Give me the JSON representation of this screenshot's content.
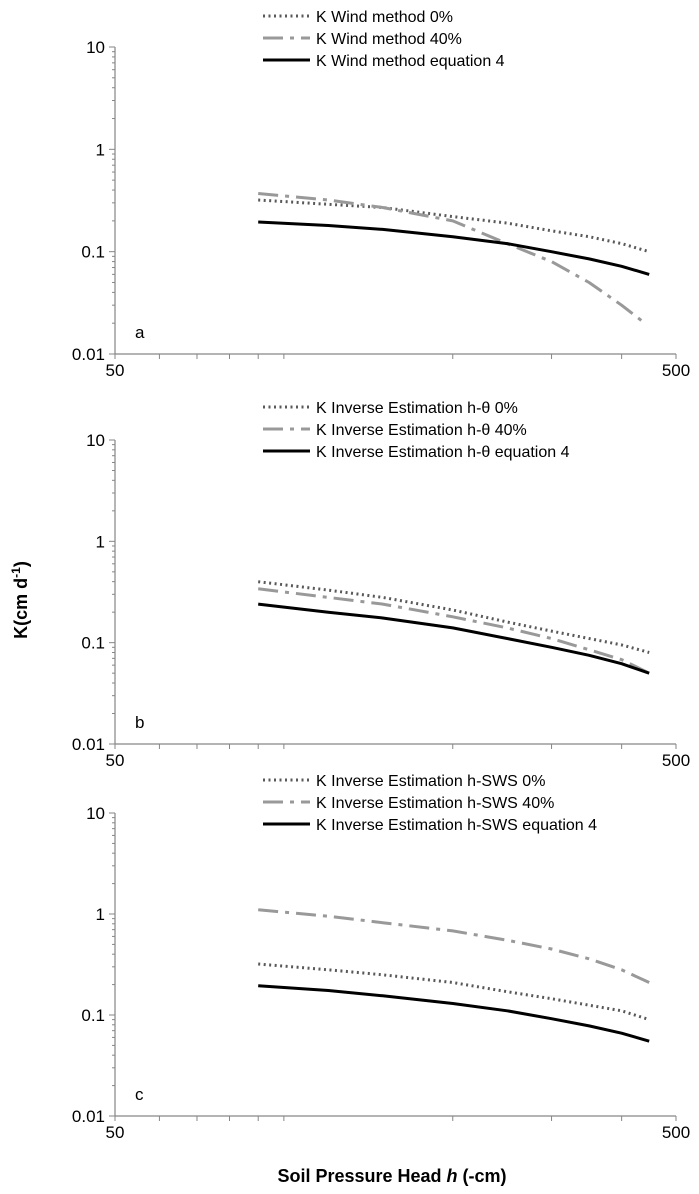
{
  "figure": {
    "ylabel": "K(cm d-1)",
    "ylabel_main": "K(cm d",
    "ylabel_sup": "-1",
    "ylabel_close": ")",
    "xlabel_pre": "Soil Pressure Head ",
    "xlabel_italic": "h",
    "xlabel_post": " (-cm)"
  },
  "chart_data": [
    {
      "type": "line",
      "panel_label": "a",
      "x_scale": "log",
      "y_scale": "log",
      "xlim": [
        50,
        500
      ],
      "ylim": [
        0.01,
        10
      ],
      "x_tick_labels": [
        "50",
        "500"
      ],
      "y_tick_labels": [
        "10",
        "1",
        "0.1",
        "0.01"
      ],
      "grid": false,
      "legend_position": "top-right",
      "series": [
        {
          "name": "K Wind method 0%",
          "style": "dotted",
          "color": "#595959",
          "x": [
            90,
            120,
            150,
            200,
            250,
            300,
            350,
            400,
            448
          ],
          "y": [
            0.32,
            0.29,
            0.27,
            0.22,
            0.19,
            0.16,
            0.14,
            0.12,
            0.1
          ]
        },
        {
          "name": "K Wind method 40%",
          "style": "dash-dot",
          "color": "#999999",
          "x": [
            90,
            120,
            150,
            200,
            250,
            300,
            350,
            400,
            440
          ],
          "y": [
            0.37,
            0.32,
            0.27,
            0.2,
            0.12,
            0.08,
            0.05,
            0.03,
            0.02
          ]
        },
        {
          "name": "K Wind method equation 4",
          "style": "solid",
          "color": "#000000",
          "x": [
            90,
            120,
            150,
            200,
            250,
            300,
            350,
            400,
            448
          ],
          "y": [
            0.195,
            0.18,
            0.165,
            0.14,
            0.12,
            0.1,
            0.085,
            0.072,
            0.06
          ]
        }
      ]
    },
    {
      "type": "line",
      "panel_label": "b",
      "x_scale": "log",
      "y_scale": "log",
      "xlim": [
        50,
        500
      ],
      "ylim": [
        0.01,
        10
      ],
      "x_tick_labels": [
        "50",
        "500"
      ],
      "y_tick_labels": [
        "10",
        "1",
        "0.1",
        "0.01"
      ],
      "grid": false,
      "legend_position": "top-right",
      "series": [
        {
          "name": "K Inverse Estimation h-θ 0%",
          "style": "dotted",
          "color": "#595959",
          "x": [
            90,
            120,
            150,
            200,
            250,
            300,
            350,
            400,
            448
          ],
          "y": [
            0.4,
            0.33,
            0.28,
            0.21,
            0.16,
            0.13,
            0.11,
            0.095,
            0.08
          ]
        },
        {
          "name": "K Inverse Estimation h-θ 40%",
          "style": "dash-dot",
          "color": "#999999",
          "x": [
            90,
            120,
            150,
            200,
            250,
            300,
            350,
            400,
            448
          ],
          "y": [
            0.34,
            0.28,
            0.24,
            0.18,
            0.14,
            0.11,
            0.085,
            0.068,
            0.05
          ]
        },
        {
          "name": "K Inverse Estimation h-θ equation 4",
          "style": "solid",
          "color": "#000000",
          "x": [
            90,
            120,
            150,
            200,
            250,
            300,
            350,
            400,
            448
          ],
          "y": [
            0.24,
            0.2,
            0.175,
            0.14,
            0.11,
            0.09,
            0.075,
            0.062,
            0.05
          ]
        }
      ]
    },
    {
      "type": "line",
      "panel_label": "c",
      "x_scale": "log",
      "y_scale": "log",
      "xlim": [
        50,
        500
      ],
      "ylim": [
        0.01,
        10
      ],
      "x_tick_labels": [
        "50",
        "500"
      ],
      "y_tick_labels": [
        "10",
        "1",
        "0.1",
        "0.01"
      ],
      "grid": false,
      "legend_position": "top-right",
      "series": [
        {
          "name": "K Inverse Estimation h-SWS 0%",
          "style": "dotted",
          "color": "#595959",
          "x": [
            90,
            120,
            150,
            200,
            250,
            300,
            350,
            400,
            448
          ],
          "y": [
            0.32,
            0.28,
            0.25,
            0.21,
            0.17,
            0.145,
            0.125,
            0.11,
            0.09
          ]
        },
        {
          "name": "K Inverse Estimation h-SWS 40%",
          "style": "dash-dot",
          "color": "#999999",
          "x": [
            90,
            120,
            150,
            200,
            250,
            300,
            350,
            400,
            448
          ],
          "y": [
            1.1,
            0.95,
            0.82,
            0.68,
            0.55,
            0.45,
            0.36,
            0.28,
            0.21
          ]
        },
        {
          "name": "K Inverse Estimation h-SWS equation 4",
          "style": "solid",
          "color": "#000000",
          "x": [
            90,
            120,
            150,
            200,
            250,
            300,
            350,
            400,
            448
          ],
          "y": [
            0.195,
            0.175,
            0.155,
            0.13,
            0.11,
            0.092,
            0.078,
            0.066,
            0.055
          ]
        }
      ]
    }
  ]
}
